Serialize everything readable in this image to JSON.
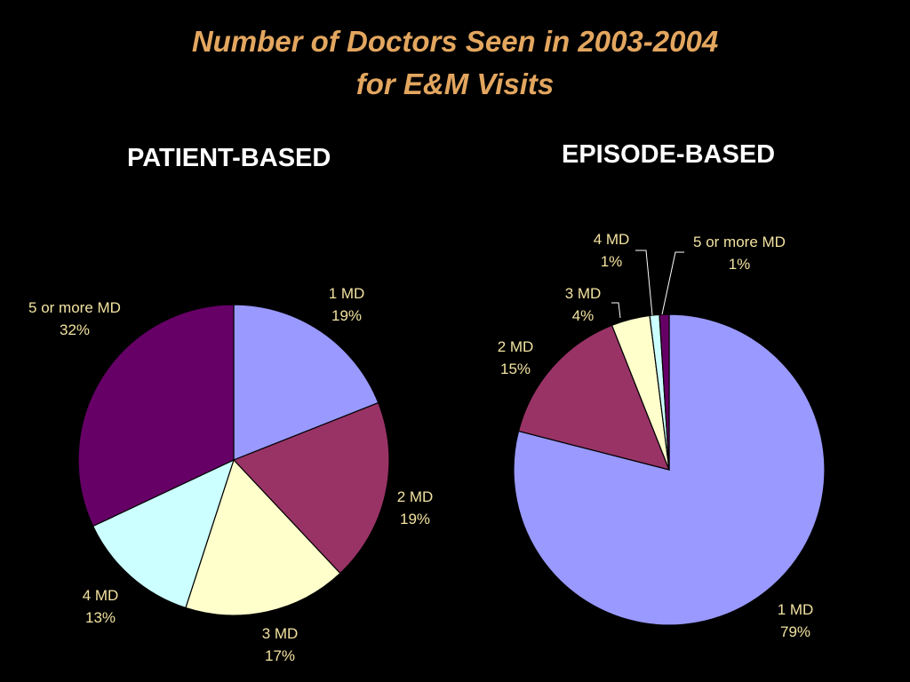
{
  "title": {
    "line1": "Number of Doctors Seen in 2003-2004",
    "line2": "for E&M Visits"
  },
  "colors": {
    "background": "#000000",
    "title": "#E3A65F",
    "heading": "#FFFFFF",
    "label": "#F2E2A0",
    "slice_1md": "#9999FF",
    "slice_2md": "#993366",
    "slice_3md": "#FFFFCC",
    "slice_4md": "#CCFFFF",
    "slice_5md": "#660066"
  },
  "chart_data": [
    {
      "type": "pie",
      "title": "PATIENT-BASED",
      "slices": [
        {
          "label": "1 MD",
          "value": 19,
          "pct": "19%"
        },
        {
          "label": "2 MD",
          "value": 19,
          "pct": "19%"
        },
        {
          "label": "3 MD",
          "value": 17,
          "pct": "17%"
        },
        {
          "label": "4 MD",
          "value": 13,
          "pct": "13%"
        },
        {
          "label": "5 or more MD",
          "value": 32,
          "pct": "32%"
        }
      ]
    },
    {
      "type": "pie",
      "title": "EPISODE-BASED",
      "slices": [
        {
          "label": "1 MD",
          "value": 79,
          "pct": "79%"
        },
        {
          "label": "2 MD",
          "value": 15,
          "pct": "15%"
        },
        {
          "label": "3 MD",
          "value": 4,
          "pct": "4%"
        },
        {
          "label": "4 MD",
          "value": 1,
          "pct": "1%"
        },
        {
          "label": "5 or more MD",
          "value": 1,
          "pct": "1%"
        }
      ]
    }
  ]
}
